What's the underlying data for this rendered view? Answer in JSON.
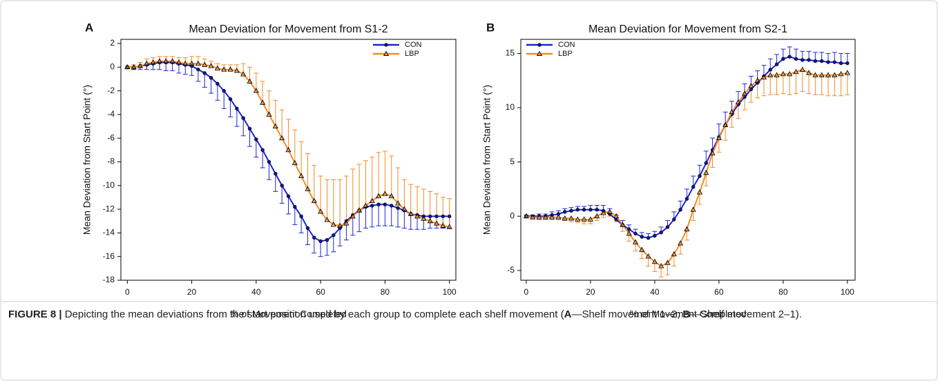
{
  "chart_data": [
    {
      "type": "line",
      "panel": "A",
      "title": "Mean Deviation for Movement from S1-2",
      "xlabel": "% of Movement Completed",
      "ylabel": "Mean Deviation from Start Point (°)",
      "xlim": [
        -2,
        102
      ],
      "ylim": [
        -18,
        2.35
      ],
      "xticks": [
        0,
        20,
        40,
        60,
        80,
        100
      ],
      "yticks": [
        -18,
        -16,
        -14,
        -12,
        -10,
        -8,
        -6,
        -4,
        -2,
        0,
        2
      ],
      "legend": "upper right",
      "x": [
        0,
        2,
        4,
        6,
        8,
        10,
        12,
        14,
        16,
        18,
        20,
        22,
        24,
        26,
        28,
        30,
        32,
        34,
        36,
        38,
        40,
        42,
        44,
        46,
        48,
        50,
        52,
        54,
        56,
        58,
        60,
        62,
        64,
        66,
        68,
        70,
        72,
        74,
        76,
        78,
        80,
        82,
        84,
        86,
        88,
        90,
        92,
        94,
        96,
        98,
        100
      ],
      "series": [
        {
          "name": "CON",
          "color": "#1c22d6",
          "marker": "circle",
          "error_direction": "down",
          "values": [
            0,
            0,
            0.1,
            0.2,
            0.3,
            0.4,
            0.4,
            0.4,
            0.3,
            0.2,
            0.1,
            -0.2,
            -0.5,
            -0.9,
            -1.4,
            -2.0,
            -2.7,
            -3.5,
            -4.3,
            -5.2,
            -6.1,
            -7.0,
            -8.0,
            -9.0,
            -10.0,
            -10.9,
            -11.8,
            -12.6,
            -13.6,
            -14.4,
            -14.7,
            -14.6,
            -14.2,
            -13.6,
            -13.0,
            -12.5,
            -12.1,
            -11.8,
            -11.7,
            -11.6,
            -11.6,
            -11.7,
            -11.9,
            -12.1,
            -12.4,
            -12.5,
            -12.6,
            -12.6,
            -12.6,
            -12.6,
            -12.6
          ],
          "errors": [
            0.1,
            0.2,
            0.3,
            0.4,
            0.5,
            0.6,
            0.7,
            0.7,
            0.8,
            0.8,
            0.8,
            1.0,
            1.2,
            1.3,
            1.4,
            1.5,
            1.5,
            1.5,
            1.5,
            1.5,
            1.5,
            1.5,
            1.5,
            1.5,
            1.5,
            1.5,
            1.5,
            1.4,
            1.4,
            1.3,
            1.3,
            1.3,
            1.4,
            1.5,
            1.6,
            1.7,
            1.8,
            1.8,
            1.8,
            1.8,
            1.8,
            1.7,
            1.6,
            1.5,
            1.3,
            1.2,
            1.1,
            1.0,
            1.0,
            1.0,
            1.0
          ]
        },
        {
          "name": "LBP",
          "color": "#f28a22",
          "marker": "triangle",
          "error_direction": "up",
          "values": [
            0,
            0,
            0.1,
            0.3,
            0.4,
            0.5,
            0.5,
            0.5,
            0.4,
            0.3,
            0.3,
            0.3,
            0.2,
            0.1,
            -0.1,
            -0.2,
            -0.2,
            -0.3,
            -0.6,
            -1.2,
            -2.0,
            -3.0,
            -4.0,
            -5.0,
            -6.0,
            -7.0,
            -8.1,
            -9.2,
            -10.3,
            -11.3,
            -12.2,
            -12.9,
            -13.3,
            -13.4,
            -13.2,
            -12.6,
            -12.1,
            -11.7,
            -11.3,
            -10.9,
            -10.7,
            -10.9,
            -11.5,
            -12.0,
            -12.4,
            -12.6,
            -12.8,
            -13.0,
            -13.2,
            -13.4,
            -13.5
          ],
          "errors": [
            0.1,
            0.2,
            0.3,
            0.4,
            0.4,
            0.4,
            0.4,
            0.4,
            0.4,
            0.5,
            0.6,
            0.6,
            0.5,
            0.4,
            0.4,
            0.4,
            0.4,
            0.5,
            0.9,
            1.2,
            1.5,
            1.8,
            2.0,
            2.2,
            2.4,
            2.6,
            2.8,
            2.9,
            3.0,
            3.0,
            3.0,
            3.4,
            3.8,
            3.9,
            4.0,
            4.0,
            3.9,
            3.8,
            3.7,
            3.7,
            3.6,
            3.4,
            3.0,
            2.5,
            2.5,
            2.5,
            2.5,
            2.5,
            2.5,
            2.4,
            2.4
          ]
        }
      ]
    },
    {
      "type": "line",
      "panel": "B",
      "title": "Mean Deviation for Movement from S2-1",
      "xlabel": "% of Movement Completed",
      "ylabel": "Mean Deviation from Start Point (°)",
      "xlim": [
        -1.7,
        102.4
      ],
      "ylim": [
        -5.9,
        16.3
      ],
      "xticks": [
        0,
        20,
        40,
        60,
        80,
        100
      ],
      "yticks": [
        -5,
        0,
        5,
        10,
        15
      ],
      "legend": "upper left",
      "x": [
        0,
        2,
        4,
        6,
        8,
        10,
        12,
        14,
        16,
        18,
        20,
        22,
        24,
        26,
        28,
        30,
        32,
        34,
        36,
        38,
        40,
        42,
        44,
        46,
        48,
        50,
        52,
        54,
        56,
        58,
        60,
        62,
        64,
        66,
        68,
        70,
        72,
        74,
        76,
        78,
        80,
        82,
        84,
        86,
        88,
        90,
        92,
        94,
        96,
        98,
        100
      ],
      "series": [
        {
          "name": "CON",
          "color": "#1c22d6",
          "marker": "circle",
          "error_direction": "up",
          "values": [
            0,
            0,
            0,
            0,
            0.1,
            0.2,
            0.4,
            0.5,
            0.6,
            0.6,
            0.6,
            0.6,
            0.5,
            0.2,
            -0.3,
            -0.8,
            -1.2,
            -1.6,
            -1.9,
            -2.0,
            -1.8,
            -1.5,
            -1.0,
            -0.3,
            0.6,
            1.6,
            2.7,
            3.7,
            4.9,
            6.1,
            7.3,
            8.4,
            9.4,
            10.3,
            11.0,
            11.7,
            12.3,
            12.9,
            13.5,
            14.0,
            14.5,
            14.7,
            14.5,
            14.4,
            14.4,
            14.3,
            14.3,
            14.2,
            14.2,
            14.1,
            14.1
          ],
          "errors": [
            0.1,
            0.1,
            0.2,
            0.2,
            0.3,
            0.3,
            0.3,
            0.3,
            0.3,
            0.3,
            0.4,
            0.4,
            0.5,
            0.5,
            0.4,
            0.4,
            0.4,
            0.4,
            0.4,
            0.4,
            0.4,
            0.5,
            0.6,
            0.7,
            0.8,
            0.9,
            1.0,
            1.0,
            1.1,
            1.1,
            1.2,
            1.2,
            1.2,
            1.2,
            1.2,
            1.2,
            1.1,
            1.0,
            1.0,
            0.9,
            0.9,
            0.9,
            0.9,
            0.8,
            0.8,
            0.8,
            0.8,
            0.8,
            0.9,
            0.9,
            0.9
          ]
        },
        {
          "name": "LBP",
          "color": "#f28a22",
          "marker": "triangle",
          "error_direction": "down",
          "values": [
            0,
            -0.1,
            -0.1,
            -0.1,
            -0.1,
            -0.1,
            -0.2,
            -0.2,
            -0.3,
            -0.3,
            -0.3,
            0,
            0.3,
            0.4,
            0,
            -0.8,
            -1.6,
            -2.4,
            -3.1,
            -3.7,
            -4.2,
            -4.6,
            -4.3,
            -3.5,
            -2.5,
            -1.2,
            0.6,
            2.2,
            4.0,
            5.8,
            7.2,
            8.4,
            9.6,
            10.5,
            11.3,
            12.0,
            12.5,
            12.8,
            13.0,
            13.0,
            13.1,
            13.1,
            13.3,
            13.5,
            13.2,
            13.0,
            13.0,
            13.0,
            13.0,
            13.1,
            13.2
          ],
          "errors": [
            0.1,
            0.1,
            0.2,
            0.2,
            0.2,
            0.2,
            0.2,
            0.3,
            0.3,
            0.4,
            0.4,
            0.4,
            0.4,
            0.4,
            0.5,
            0.6,
            0.7,
            0.8,
            0.8,
            0.9,
            0.9,
            1.0,
            1.1,
            1.1,
            1.0,
            1.0,
            1.0,
            1.1,
            1.2,
            1.3,
            1.3,
            1.4,
            1.4,
            1.5,
            1.5,
            1.5,
            1.6,
            1.7,
            1.8,
            1.8,
            1.8,
            1.9,
            2.0,
            2.0,
            1.9,
            1.8,
            1.8,
            1.9,
            1.9,
            2.0,
            2.0
          ]
        }
      ]
    }
  ],
  "caption": {
    "label": "FIGURE 8 |",
    "text_1": " Depicting the mean deviations from the start position used by each group to complete each shelf movement (",
    "panel_a": "A",
    "text_2": "—Shelf movement 1–2; ",
    "panel_b": "B",
    "text_3": "—Shelf movement 2–1)."
  }
}
